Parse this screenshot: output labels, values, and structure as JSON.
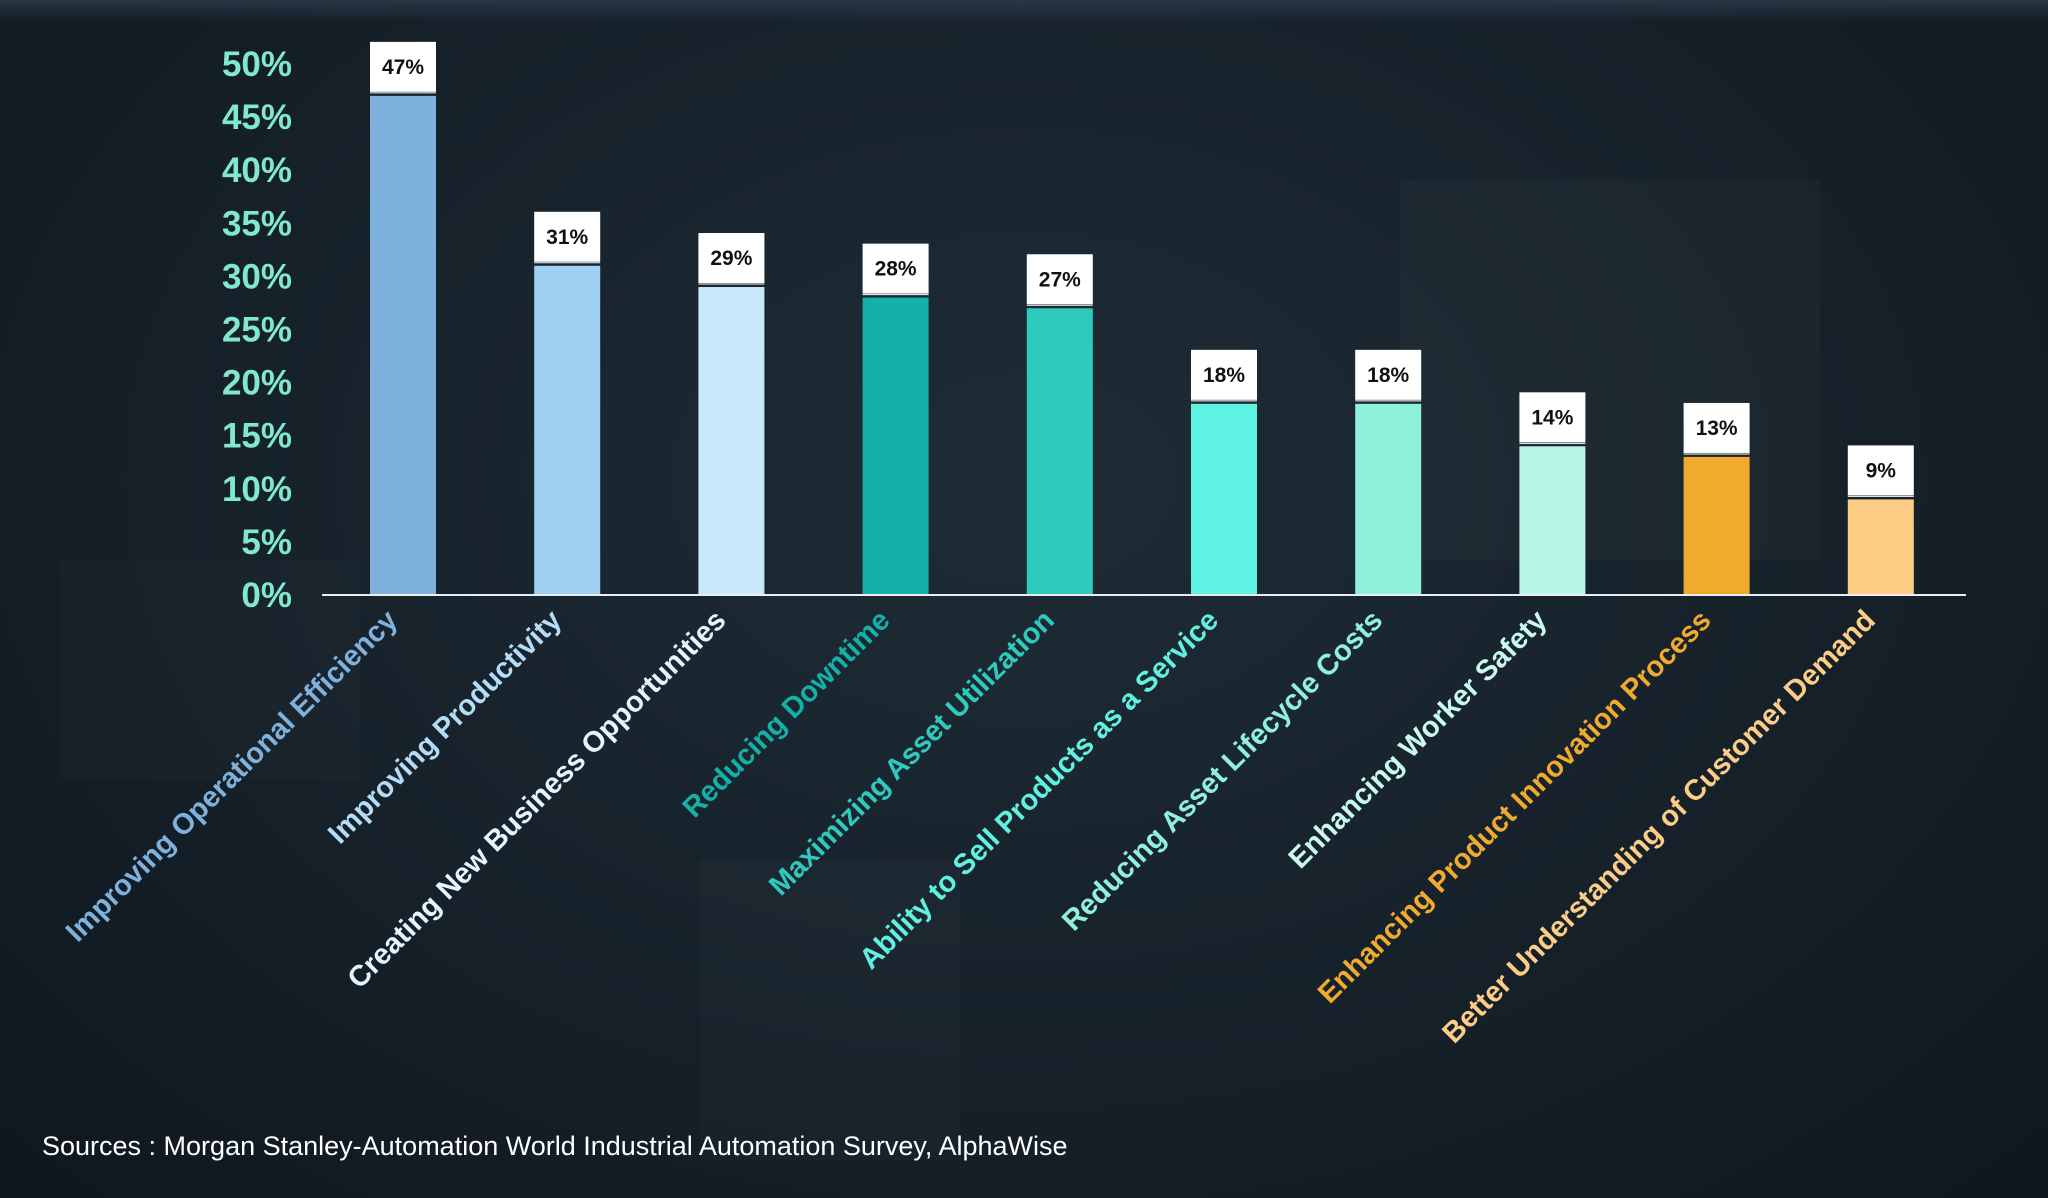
{
  "chart_data": {
    "type": "bar",
    "categories": [
      "Improving Operational Efficiency",
      "Improving Productivity",
      "Creating New Business Opportunities",
      "Reducing Downtime",
      "Maximizing Asset Utilization",
      "Ability to Sell Products as a Service",
      "Reducing Asset Lifecycle Costs",
      "Enhancing Worker Safety",
      "Enhancing Product Innovation Process",
      "Better Understanding of Customer Demand"
    ],
    "values": [
      47,
      31,
      29,
      28,
      27,
      18,
      18,
      14,
      13,
      9
    ],
    "data_labels": [
      "47%",
      "31%",
      "29%",
      "28%",
      "27%",
      "18%",
      "18%",
      "14%",
      "13%",
      "9%"
    ],
    "bar_colors": [
      "#7eb2dc",
      "#9fd0f4",
      "#c8e9fb",
      "#13b1a8",
      "#2ecbbd",
      "#5ef2e2",
      "#8ff0dc",
      "#b7f7e8",
      "#f0ab2e",
      "#fdcd85"
    ],
    "label_colors": [
      "#7eb2dc",
      "#b4dcf7",
      "#e6f5fd",
      "#13b1a8",
      "#2ecbbd",
      "#5ef2e2",
      "#8ff0dc",
      "#c9f9ee",
      "#f0ab2e",
      "#fdcd85"
    ],
    "y_ticks": [
      "0%",
      "5%",
      "10%",
      "15%",
      "20%",
      "25%",
      "30%",
      "35%",
      "40%",
      "45%",
      "50%"
    ],
    "ylim": [
      0,
      50
    ],
    "grid": false,
    "title": "",
    "xlabel": "",
    "ylabel": ""
  },
  "source": "Sources : Morgan Stanley-Automation World Industrial Automation Survey, AlphaWise"
}
